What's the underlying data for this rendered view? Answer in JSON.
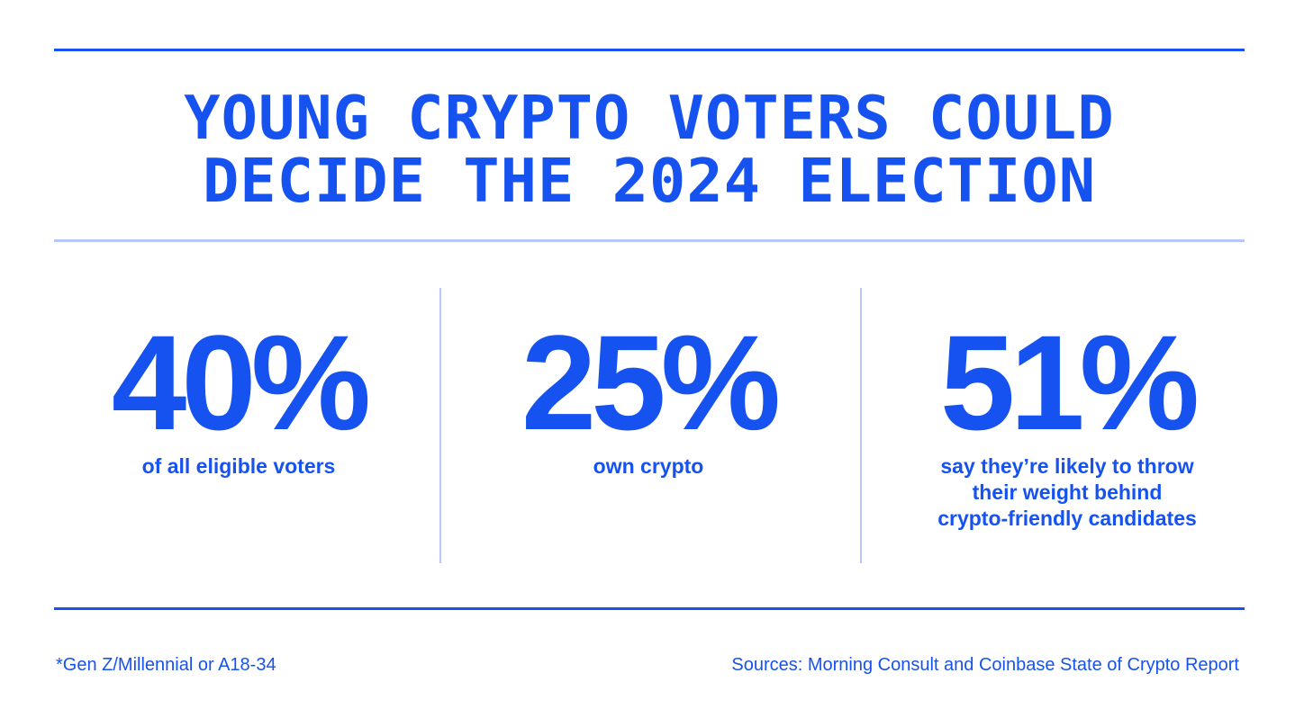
{
  "title": {
    "line1": "YOUNG CRYPTO VOTERS COULD",
    "line2": "DECIDE THE 2024 ELECTION"
  },
  "stats": [
    {
      "value": "40%",
      "caption": [
        "of all eligible voters"
      ]
    },
    {
      "value": "25%",
      "caption": [
        "own crypto"
      ]
    },
    {
      "value": "51%",
      "caption": [
        "say they’re likely to throw",
        "their weight behind",
        "crypto-friendly candidates"
      ]
    }
  ],
  "footer": {
    "footnote": "*Gen Z/Millennial or A18-34",
    "sources": "Sources: Morning Consult and Coinbase State of Crypto Report"
  },
  "colors": {
    "accent": "#1652f0",
    "divider": "#b6c8fa",
    "background": "#ffffff"
  }
}
